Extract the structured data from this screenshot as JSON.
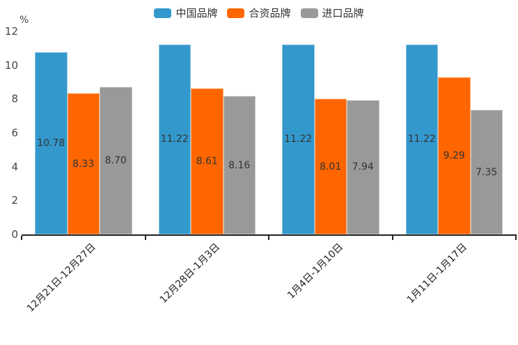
{
  "chart_data": {
    "type": "bar",
    "title": "",
    "unit": "%",
    "categories": [
      "12月21日-12月27日",
      "12月28日-1月3日",
      "1月4日-1月10日",
      "1月11日-1月17日"
    ],
    "series": [
      {
        "name": "中国品牌",
        "color": "#3398cc",
        "values": [
          10.78,
          11.22,
          11.22,
          11.22
        ]
      },
      {
        "name": "合资品牌",
        "color": "#ff6600",
        "values": [
          8.33,
          8.61,
          8.01,
          9.29
        ]
      },
      {
        "name": "进口品牌",
        "color": "#999999",
        "values": [
          8.7,
          8.16,
          7.94,
          7.35
        ]
      }
    ],
    "ylim": [
      0,
      12
    ],
    "ytick_interval": 2,
    "grid": false,
    "legend_position": "top",
    "xlabel": "",
    "ylabel": "%",
    "value_label_decimals": 2,
    "x_label_rotation_deg": 45
  }
}
